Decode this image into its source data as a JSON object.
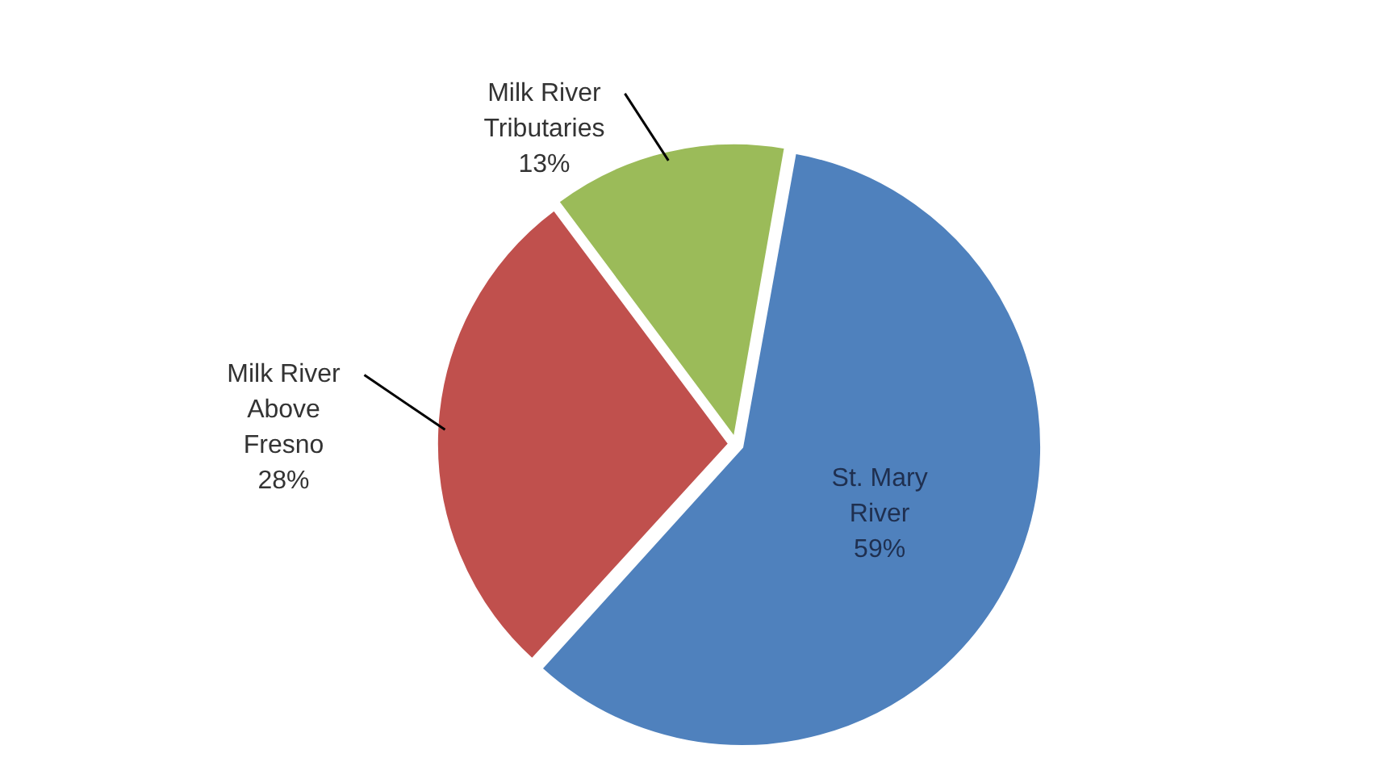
{
  "chart_data": {
    "type": "pie",
    "categories": [
      "St. Mary River",
      "Milk River Above Fresno",
      "Milk River Tributaries"
    ],
    "values": [
      59,
      28,
      13
    ],
    "value_labels": [
      "59%",
      "28%",
      "13%"
    ],
    "colors": [
      "#4f81bd",
      "#c0504d",
      "#9bbb59"
    ],
    "legend": false
  }
}
